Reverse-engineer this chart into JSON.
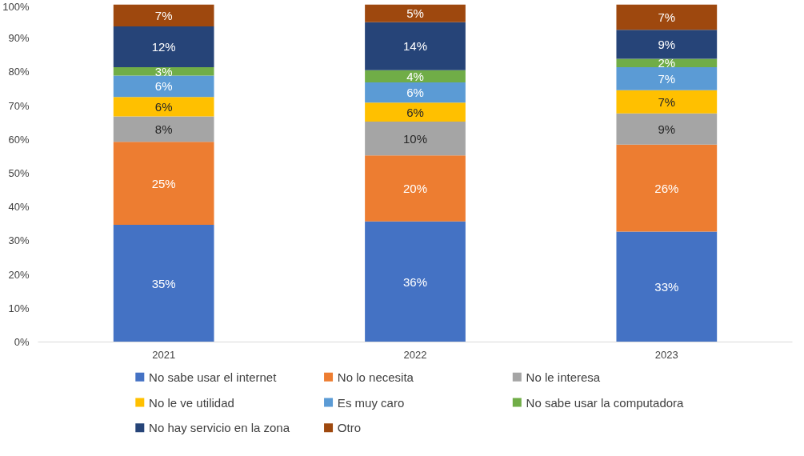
{
  "chart_data": {
    "type": "bar",
    "stacked": true,
    "categories": [
      "2021",
      "2022",
      "2023"
    ],
    "ylim": [
      0,
      100
    ],
    "yticks": [
      {
        "value": 0,
        "label": "0%"
      },
      {
        "value": 10,
        "label": "10%"
      },
      {
        "value": 20,
        "label": "20%"
      },
      {
        "value": 30,
        "label": "30%"
      },
      {
        "value": 40,
        "label": "40%"
      },
      {
        "value": 50,
        "label": "50%"
      },
      {
        "value": 60,
        "label": "60%"
      },
      {
        "value": 70,
        "label": "70%"
      },
      {
        "value": 80,
        "label": "80%"
      },
      {
        "value": 90,
        "label": "90%"
      },
      {
        "value": 100,
        "label": "100%"
      }
    ],
    "grid": false,
    "legend": "bottom",
    "series": [
      {
        "name": "No sabe usar el internet",
        "color": "#4472c4",
        "values": [
          34.7,
          35.7,
          32.7
        ],
        "value_labels": [
          "35%",
          "36%",
          "33%"
        ]
      },
      {
        "name": "No lo  necesita",
        "color": "#ed7d31",
        "values": [
          24.6,
          19.6,
          25.8
        ],
        "value_labels": [
          "25%",
          "20%",
          "26%"
        ]
      },
      {
        "name": "No le interesa",
        "color": "#a5a5a5",
        "values": [
          7.5,
          10.0,
          9.2
        ],
        "value_labels": [
          "8%",
          "10%",
          "9%"
        ]
      },
      {
        "name": "No le ve utilidad",
        "color": "#ffc000",
        "values": [
          5.8,
          5.6,
          6.9
        ],
        "value_labels": [
          "6%",
          "6%",
          "7%"
        ]
      },
      {
        "name": "Es muy caro",
        "color": "#5b9bd5",
        "values": [
          6.3,
          6.0,
          6.8
        ],
        "value_labels": [
          "6%",
          "6%",
          "7%"
        ]
      },
      {
        "name": "No sabe usar la computadora",
        "color": "#70ad47",
        "values": [
          2.5,
          3.6,
          2.5
        ],
        "value_labels": [
          "3%",
          "4%",
          "2%"
        ]
      },
      {
        "name": "No hay servicio en la zona",
        "color": "#264478",
        "values": [
          12.1,
          14.2,
          8.6
        ],
        "value_labels": [
          "12%",
          "14%",
          "9%"
        ]
      },
      {
        "name": "Otro",
        "color": "#9e480e",
        "values": [
          6.5,
          5.3,
          7.5
        ],
        "value_labels": [
          "7%",
          "5%",
          "7%"
        ]
      }
    ]
  }
}
